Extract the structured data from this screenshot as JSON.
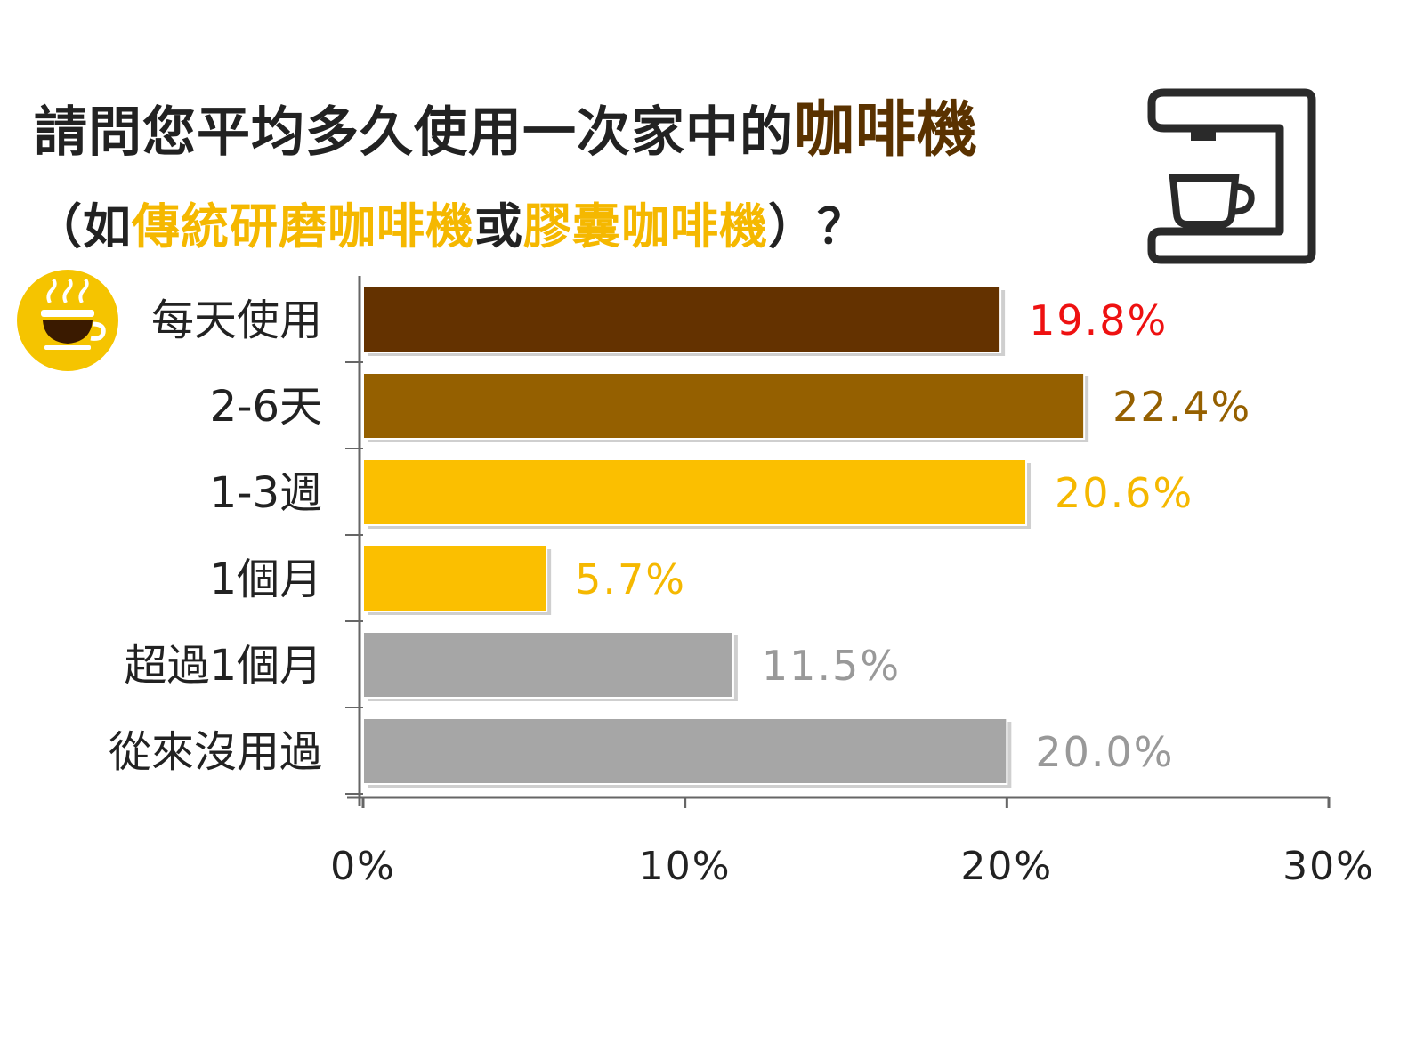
{
  "title": {
    "line1_prefix": "請問您平均多久使用一次家中的",
    "line1_highlight": "咖啡機",
    "line2_open": "（如",
    "line2_hl1": "傳統研磨咖啡機",
    "line2_mid": "或",
    "line2_hl2": "膠囊咖啡機",
    "line2_close": "）？"
  },
  "icons": {
    "machine": "coffee-machine-icon",
    "badge": "coffee-cup-icon"
  },
  "chart_data": {
    "type": "bar",
    "orientation": "horizontal",
    "categories": [
      "每天使用",
      "2-6天",
      "1-3週",
      "1個月",
      "超過1個月",
      "從來沒用過"
    ],
    "values": [
      19.8,
      22.4,
      20.6,
      5.7,
      11.5,
      20.0
    ],
    "value_labels": [
      "19.8%",
      "22.4%",
      "20.6%",
      "5.7%",
      "11.5%",
      "20.0%"
    ],
    "bar_colors": [
      "#643200",
      "#956000",
      "#fbbf00",
      "#fbbf00",
      "#a6a6a6",
      "#a6a6a6"
    ],
    "label_colors": [
      "#ee1111",
      "#956000",
      "#f5b800",
      "#f5b800",
      "#999999",
      "#999999"
    ],
    "xlim": [
      0,
      30
    ],
    "xticks": [
      0,
      10,
      20,
      30
    ],
    "xtick_labels": [
      "0%",
      "10%",
      "20%",
      "30%"
    ],
    "grid": false
  }
}
